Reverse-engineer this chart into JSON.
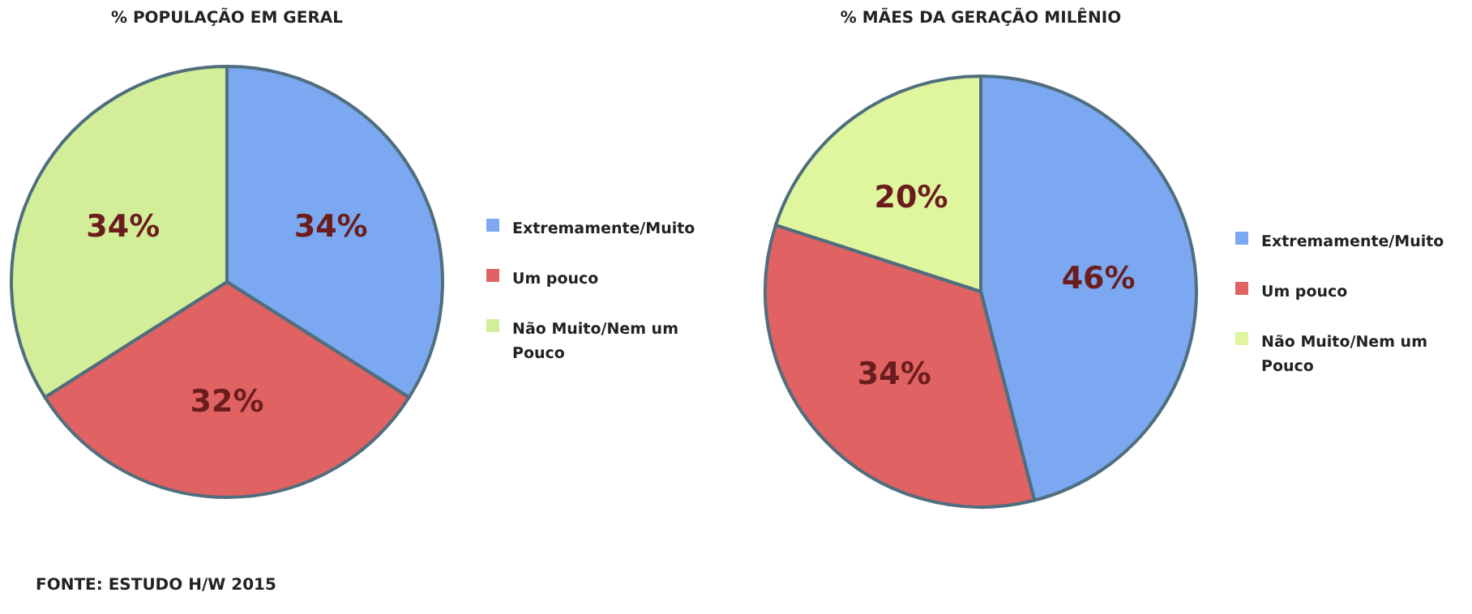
{
  "chart_data": [
    {
      "type": "pie",
      "title": "% POPULAÇÃO EM GERAL",
      "categories": [
        "Extremamente/Muito",
        "Um pouco",
        "Não Muito/Nem um Pouco"
      ],
      "values": [
        34,
        32,
        34
      ],
      "value_labels": [
        "34%",
        "32%",
        "34%"
      ],
      "colors": [
        "#7ba8f0",
        "#e06262",
        "#d3ee98"
      ],
      "legend": "right",
      "annotations": [
        "FONTE: ESTUDO H/W 2015"
      ]
    },
    {
      "type": "pie",
      "title": "% MÃES DA GERAÇÃO MILÊNIO",
      "categories": [
        "Extremamente/Muito",
        "Um pouco",
        "Não Muito/Nem um Pouco"
      ],
      "values": [
        46,
        34,
        20
      ],
      "value_labels": [
        "46%",
        "34%",
        "20%"
      ],
      "colors": [
        "#7ba8f0",
        "#e06262",
        "#dff59e"
      ],
      "legend": "right"
    }
  ]
}
